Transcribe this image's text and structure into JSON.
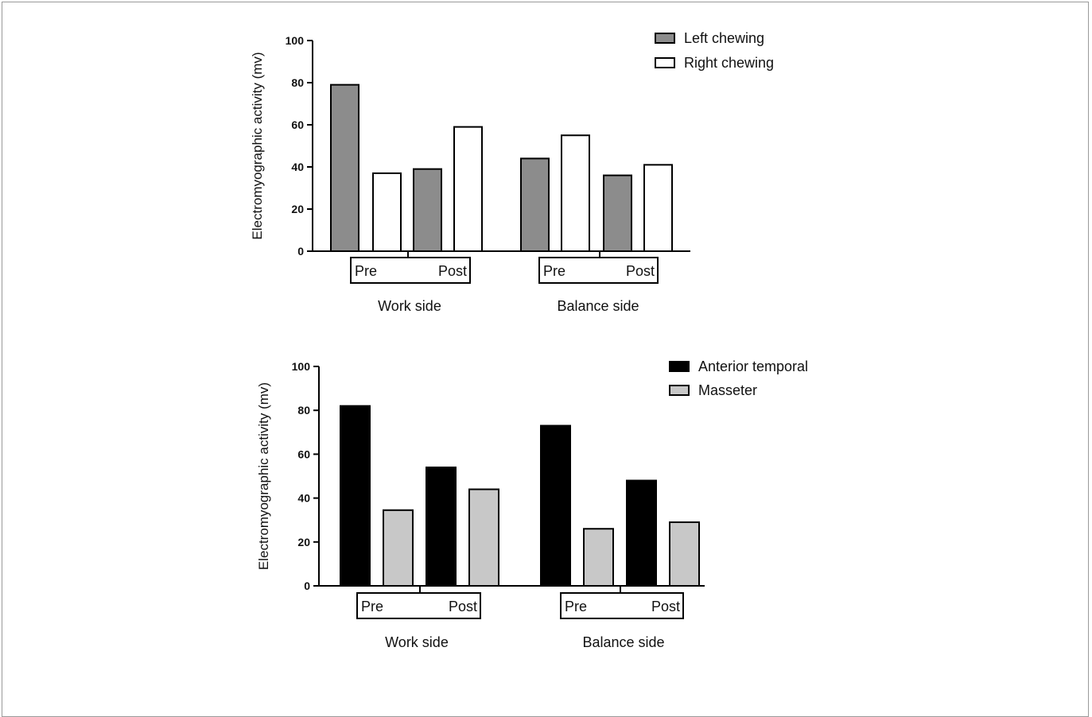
{
  "chart_data": [
    {
      "type": "bar",
      "ylabel": "Electromyographic activity (mv)",
      "ylim": [
        0,
        100
      ],
      "yticks": [
        0,
        20,
        40,
        60,
        80,
        100
      ],
      "groups": [
        "Work side",
        "Balance side"
      ],
      "phases": [
        "Pre",
        "Post"
      ],
      "categories": [
        "Work side Pre",
        "Work side Post",
        "Balance side Pre",
        "Balance side Post"
      ],
      "series": [
        {
          "name": "Left chewing",
          "color": "#8c8c8c",
          "values": [
            79,
            39,
            44,
            36
          ]
        },
        {
          "name": "Right chewing",
          "color": "#ffffff",
          "values": [
            37,
            59,
            55,
            41
          ]
        }
      ],
      "legend": "top-right"
    },
    {
      "type": "bar",
      "ylabel": "Electromyographic activity (mv)",
      "ylim": [
        0,
        100
      ],
      "yticks": [
        0,
        20,
        40,
        60,
        80,
        100
      ],
      "groups": [
        "Work side",
        "Balance side"
      ],
      "phases": [
        "Pre",
        "Post"
      ],
      "categories": [
        "Work side Pre",
        "Work side Post",
        "Balance side Pre",
        "Balance side Post"
      ],
      "series": [
        {
          "name": "Anterior temporal",
          "color": "#000000",
          "values": [
            82,
            54,
            73,
            48
          ]
        },
        {
          "name": "Masseter",
          "color": "#c8c8c8",
          "values": [
            34.5,
            44,
            26,
            29
          ]
        }
      ],
      "legend": "top-right"
    }
  ]
}
